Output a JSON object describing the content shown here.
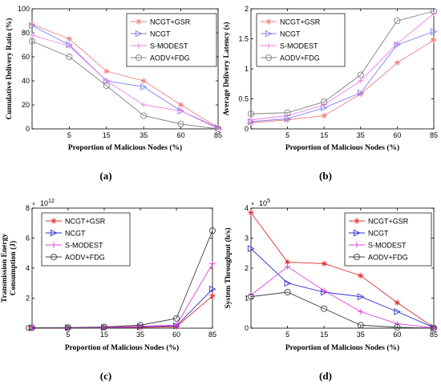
{
  "chart_data": [
    {
      "panel_label": "(a)",
      "type": "line",
      "xlabel": "Proportion of Malicious Nodes (%)",
      "ylabel": "Cumulative Delivery Ratio (%)",
      "categories": [
        "0",
        "5",
        "15",
        "35",
        "60",
        "85"
      ],
      "xtick_labels": [
        "",
        "5",
        "15",
        "35",
        "60",
        "85"
      ],
      "ylim": [
        0,
        100
      ],
      "yticks": [
        0,
        20,
        40,
        60,
        80,
        100
      ],
      "exponent": "",
      "legend_position": "top-right",
      "series": [
        {
          "name": "NCGT+GSR",
          "color": "#f08080",
          "marker": "star",
          "values": [
            87,
            75,
            48,
            40,
            20,
            1
          ]
        },
        {
          "name": "NCGT",
          "color": "#8080f0",
          "marker": "triangle-right",
          "values": [
            86,
            70,
            40,
            35,
            15,
            1
          ]
        },
        {
          "name": "S-MODEST",
          "color": "#f080f0",
          "marker": "plus",
          "values": [
            78,
            69,
            40,
            20,
            15,
            0
          ]
        },
        {
          "name": "AODV+FDG",
          "color": "#808080",
          "marker": "circle",
          "values": [
            73,
            60,
            36,
            11,
            4,
            0
          ]
        }
      ]
    },
    {
      "panel_label": "(b)",
      "type": "line",
      "xlabel": "Proportion of Malicious Nodes (%)",
      "ylabel": "Average Delivery Latency (s)",
      "categories": [
        "0",
        "5",
        "15",
        "35",
        "60",
        "85"
      ],
      "xtick_labels": [
        "",
        "5",
        "15",
        "35",
        "60",
        "85"
      ],
      "ylim": [
        0,
        2
      ],
      "yticks": [
        0,
        0.5,
        1,
        1.5,
        2
      ],
      "ytick_labels": [
        "0",
        "0.5",
        "1",
        "1.5",
        "2"
      ],
      "exponent": "",
      "legend_position": "top-left",
      "series": [
        {
          "name": "NCGT+GSR",
          "color": "#f08080",
          "marker": "star",
          "values": [
            0.1,
            0.15,
            0.22,
            0.58,
            1.1,
            1.48
          ]
        },
        {
          "name": "NCGT",
          "color": "#8080f0",
          "marker": "triangle-right",
          "values": [
            0.12,
            0.17,
            0.35,
            0.6,
            1.4,
            1.62
          ]
        },
        {
          "name": "S-MODEST",
          "color": "#f080f0",
          "marker": "plus",
          "values": [
            0.15,
            0.22,
            0.4,
            0.8,
            1.42,
            1.92
          ]
        },
        {
          "name": "AODV+FDG",
          "color": "#808080",
          "marker": "circle",
          "values": [
            0.25,
            0.27,
            0.45,
            0.9,
            1.8,
            1.96
          ]
        }
      ]
    },
    {
      "panel_label": "(c)",
      "type": "line",
      "xlabel": "Proportion of Malicious Nodes (%)",
      "ylabel": "Transmission Energy Consumption (J)",
      "ylabel_lines": [
        "Transmission Energy",
        "Consumption (J)"
      ],
      "categories": [
        "0",
        "5",
        "15",
        "35",
        "60",
        "85"
      ],
      "xtick_labels": [
        "",
        "5",
        "15",
        "35",
        "60",
        "85"
      ],
      "ylim": [
        0,
        8
      ],
      "yticks": [
        0,
        2,
        4,
        6,
        8
      ],
      "ytick_labels": [
        "0",
        "2",
        "4",
        "6",
        "8"
      ],
      "exponent": "10",
      "exponent_power": "12",
      "legend_position": "top-left",
      "series": [
        {
          "name": "NCGT+GSR",
          "color": "#e03030",
          "marker": "star",
          "values": [
            0.02,
            0.02,
            0.03,
            0.05,
            0.1,
            2.15
          ]
        },
        {
          "name": "NCGT",
          "color": "#3030d0",
          "marker": "triangle-right",
          "values": [
            0.02,
            0.03,
            0.04,
            0.1,
            0.15,
            2.6
          ]
        },
        {
          "name": "S-MODEST",
          "color": "#e040e0",
          "marker": "plus",
          "values": [
            0.03,
            0.03,
            0.05,
            0.12,
            0.2,
            4.3
          ]
        },
        {
          "name": "AODV+FDG",
          "color": "#404040",
          "marker": "circle",
          "values": [
            0.03,
            0.04,
            0.08,
            0.2,
            0.65,
            6.5
          ]
        }
      ]
    },
    {
      "panel_label": "(d)",
      "type": "line",
      "xlabel": "Proportion of Malicious Nodes (%)",
      "ylabel": "System Throughput (b/s)",
      "categories": [
        "0",
        "5",
        "15",
        "35",
        "60",
        "85"
      ],
      "xtick_labels": [
        "",
        "5",
        "15",
        "35",
        "60",
        "85"
      ],
      "ylim": [
        0,
        4
      ],
      "yticks": [
        0,
        1,
        2,
        3,
        4
      ],
      "ytick_labels": [
        "0",
        "1",
        "2",
        "3",
        "4"
      ],
      "exponent": "10",
      "exponent_power": "5",
      "legend_position": "top-right",
      "series": [
        {
          "name": "NCGT+GSR",
          "color": "#e03030",
          "marker": "star",
          "values": [
            3.85,
            2.2,
            2.15,
            1.75,
            0.85,
            0.02
          ]
        },
        {
          "name": "NCGT",
          "color": "#3030d0",
          "marker": "triangle-right",
          "values": [
            2.65,
            1.5,
            1.2,
            1.05,
            0.55,
            0.02
          ]
        },
        {
          "name": "S-MODEST",
          "color": "#e040e0",
          "marker": "plus",
          "values": [
            1.1,
            2.05,
            1.25,
            0.55,
            0.15,
            0.01
          ]
        },
        {
          "name": "AODV+FDG",
          "color": "#404040",
          "marker": "circle",
          "values": [
            1.05,
            1.2,
            0.65,
            0.1,
            0.03,
            0.0
          ]
        }
      ]
    }
  ]
}
